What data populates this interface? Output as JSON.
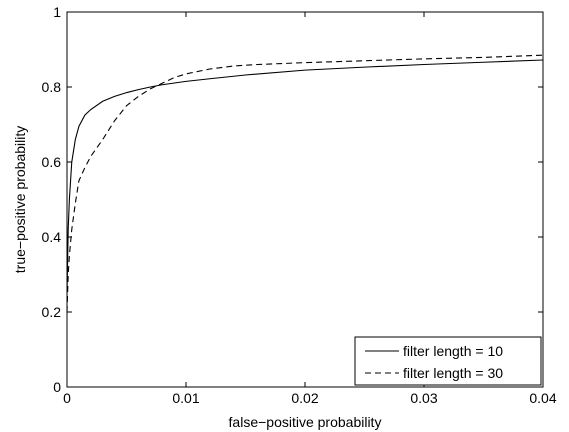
{
  "chart_data": {
    "type": "line",
    "title": "",
    "xlabel": "false−positive probability",
    "ylabel": "true−positive probability",
    "xlim": [
      0,
      0.04
    ],
    "ylim": [
      0,
      1
    ],
    "x_ticks": [
      0,
      0.01,
      0.02,
      0.03,
      0.04
    ],
    "x_tick_labels": [
      "0",
      "0.01",
      "0.02",
      "0.03",
      "0.04"
    ],
    "y_ticks": [
      0,
      0.2,
      0.4,
      0.6,
      0.8,
      1
    ],
    "y_tick_labels": [
      "0",
      "0.2",
      "0.4",
      "0.6",
      "0.8",
      "1"
    ],
    "grid": false,
    "legend_position": "bottom-right",
    "series": [
      {
        "name": "filter length = 10",
        "line_style": "solid",
        "color": "#000000",
        "x": [
          0,
          0.0001,
          0.0002,
          0.0004,
          0.0007,
          0.001,
          0.0015,
          0.002,
          0.003,
          0.004,
          0.005,
          0.006,
          0.007,
          0.008,
          0.01,
          0.012,
          0.015,
          0.02,
          0.025,
          0.03,
          0.035,
          0.04
        ],
        "y": [
          0.25,
          0.42,
          0.5,
          0.6,
          0.66,
          0.695,
          0.725,
          0.74,
          0.762,
          0.775,
          0.785,
          0.793,
          0.8,
          0.806,
          0.815,
          0.822,
          0.832,
          0.845,
          0.853,
          0.86,
          0.866,
          0.872
        ]
      },
      {
        "name": "filter length = 30",
        "line_style": "dashed",
        "color": "#000000",
        "x": [
          0,
          0.0001,
          0.0002,
          0.0004,
          0.0007,
          0.001,
          0.0015,
          0.002,
          0.003,
          0.004,
          0.005,
          0.006,
          0.007,
          0.008,
          0.009,
          0.01,
          0.012,
          0.014,
          0.016,
          0.02,
          0.025,
          0.03,
          0.035,
          0.04
        ],
        "y": [
          0.2,
          0.3,
          0.35,
          0.42,
          0.49,
          0.55,
          0.585,
          0.615,
          0.66,
          0.71,
          0.75,
          0.775,
          0.795,
          0.81,
          0.825,
          0.835,
          0.848,
          0.856,
          0.86,
          0.865,
          0.87,
          0.875,
          0.879,
          0.885
        ]
      }
    ]
  }
}
